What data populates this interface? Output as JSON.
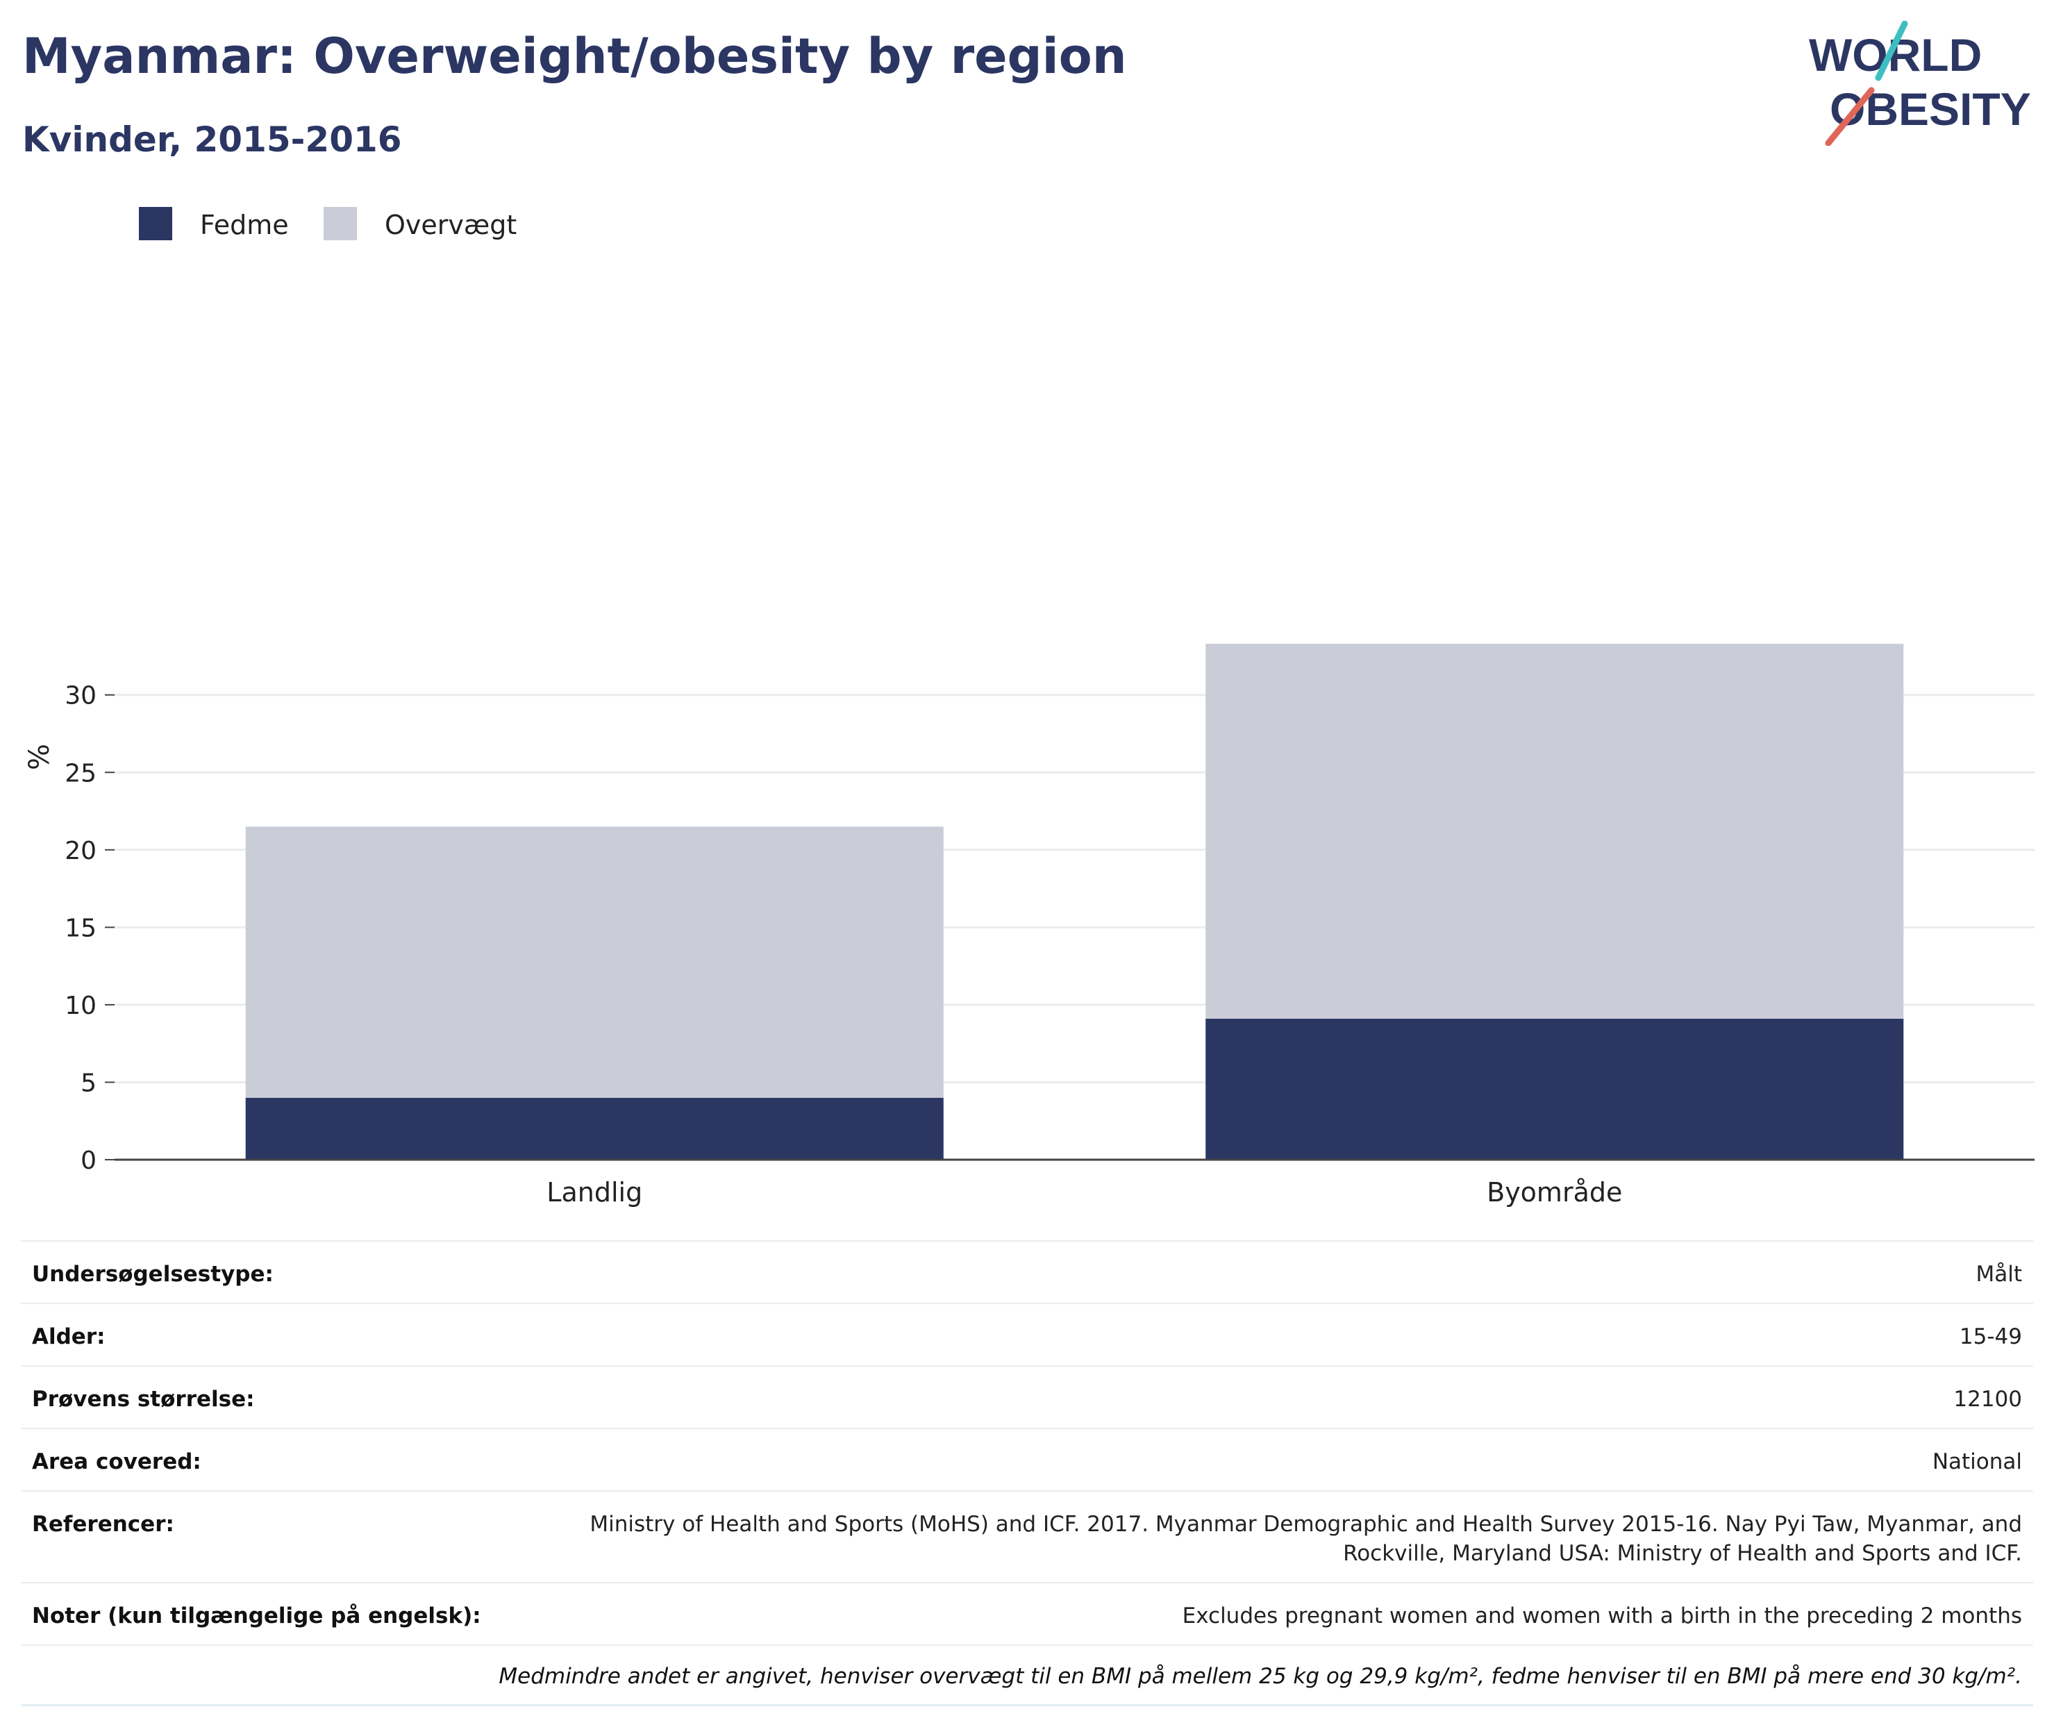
{
  "header": {
    "title": "Myanmar: Overweight/obesity by region",
    "subtitle": "Kvinder, 2015-2016"
  },
  "logo": {
    "line1": "WORLD",
    "line2": "OBESITY",
    "colors": {
      "text": "#2b3663",
      "slash_top": "#3dbfc1",
      "slash_bottom": "#e0665a"
    }
  },
  "legend": [
    {
      "label": "Fedme",
      "color": "#2b3663"
    },
    {
      "label": "Overvægt",
      "color": "#cacdd8"
    }
  ],
  "chart_data": {
    "type": "bar",
    "stacked": true,
    "categories": [
      "Landlig",
      "Byområde"
    ],
    "series": [
      {
        "name": "Fedme",
        "values": [
          4.0,
          9.1
        ],
        "color": "#2b3663"
      },
      {
        "name": "Overvægt",
        "values": [
          17.5,
          24.2
        ],
        "color": "#cacdd8"
      }
    ],
    "ylabel": "%",
    "ylim": [
      0,
      35
    ],
    "yticks": [
      0,
      5,
      10,
      15,
      20,
      25,
      30
    ],
    "grid": true
  },
  "info": [
    {
      "key": "Undersøgelsestype:",
      "value": "Målt"
    },
    {
      "key": "Alder:",
      "value": "15-49"
    },
    {
      "key": "Prøvens størrelse:",
      "value": "12100"
    },
    {
      "key": "Area covered:",
      "value": "National"
    },
    {
      "key": "Referencer:",
      "value": "Ministry of Health and Sports (MoHS) and ICF. 2017. Myanmar Demographic and Health Survey 2015-16. Nay Pyi Taw, Myanmar, and Rockville, Maryland USA: Ministry of Health and Sports and ICF."
    },
    {
      "key": "Noter (kun tilgængelige på engelsk):",
      "value": "Excludes pregnant women and women with a birth in the preceding 2 months"
    }
  ],
  "footnote": "Medmindre andet er angivet, henviser overvægt til en BMI på mellem 25 kg og 29,9 kg/m², fedme henviser til en BMI på mere end 30 kg/m²."
}
